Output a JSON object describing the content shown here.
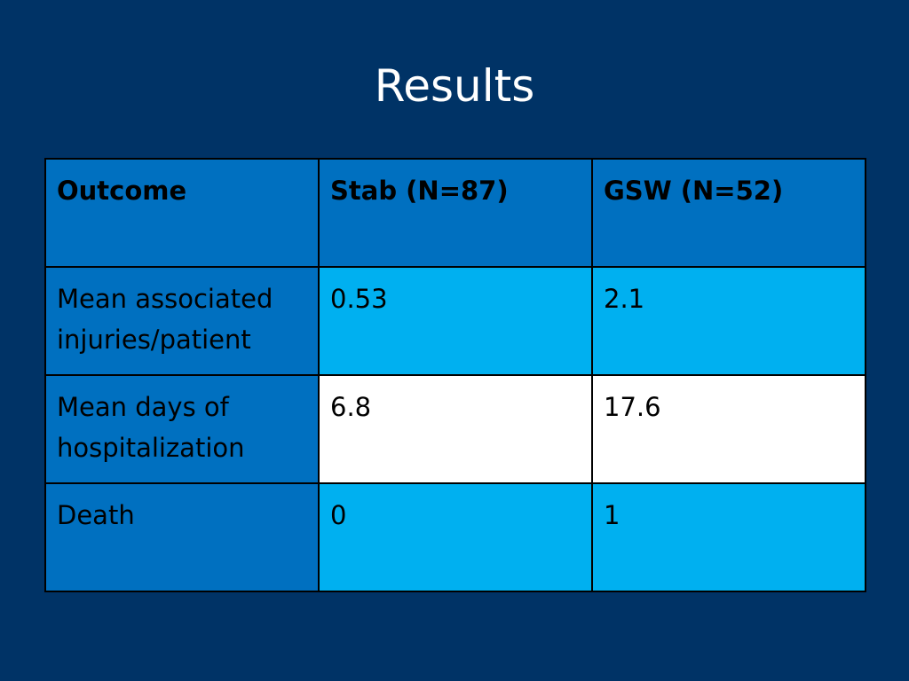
{
  "slide": {
    "title": "Results"
  },
  "table": {
    "headers": [
      "Outcome",
      "Stab (N=87)",
      "GSW (N=52)"
    ],
    "rows": [
      {
        "label": "Mean associated injuries/patient",
        "stab": "0.53",
        "gsw": "2.1"
      },
      {
        "label": "Mean days of hospitalization",
        "stab": "6.8",
        "gsw": "17.6"
      },
      {
        "label": "Death",
        "stab": "0",
        "gsw": "1"
      }
    ]
  },
  "colors": {
    "background": "#003366",
    "header_fill": "#0070C0",
    "row_light_blue": "#00B0F0",
    "row_white": "#FFFFFF",
    "border": "#000000"
  }
}
